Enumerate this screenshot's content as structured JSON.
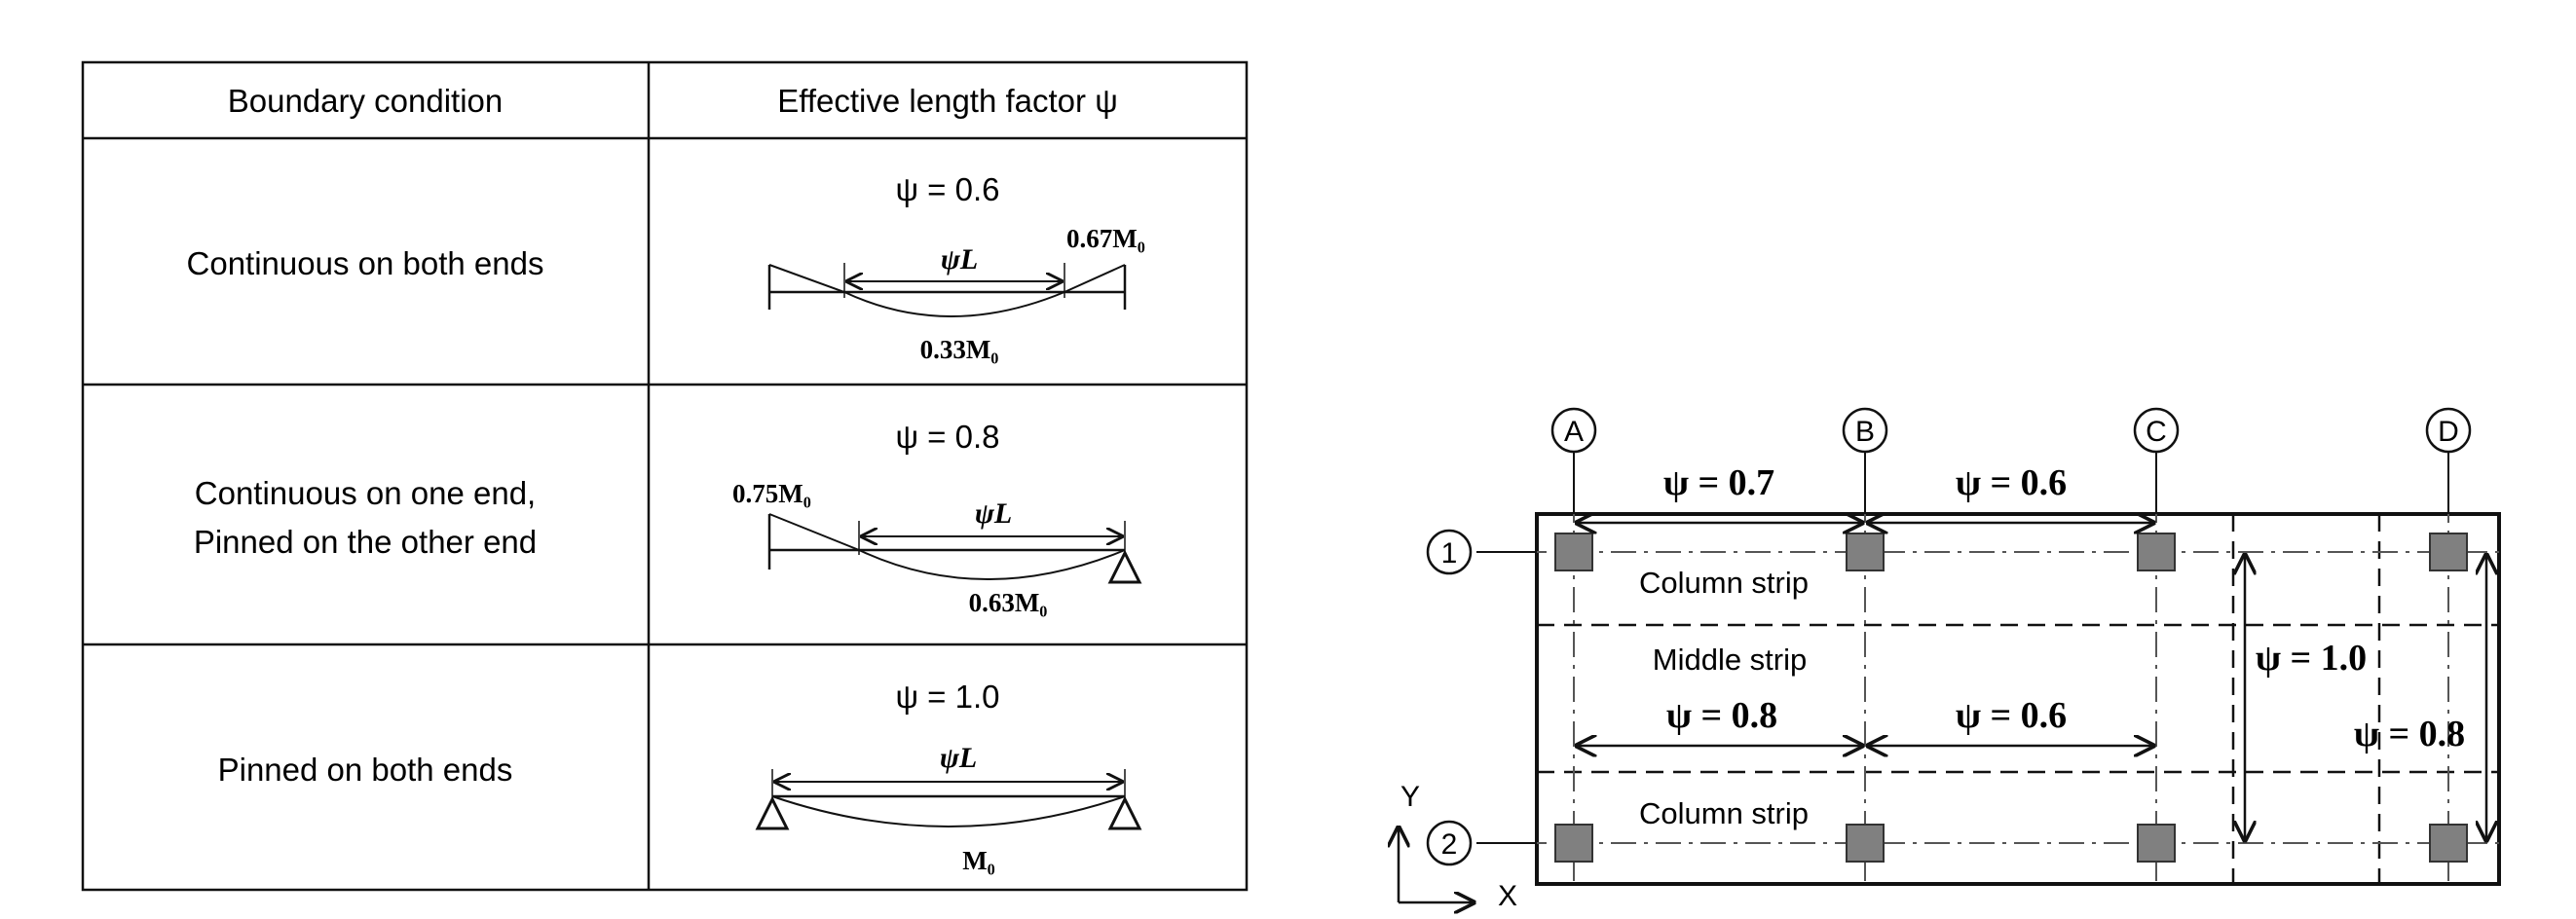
{
  "table": {
    "header_condition": "Boundary condition",
    "header_factor": "Effective length factor ψ",
    "rows": [
      {
        "condition_line1": "Continuous on both ends",
        "condition_line2": "",
        "psi_label": "ψ = 0.6",
        "span_label": "ψL",
        "moment_end": "0.67M₀",
        "moment_mid": "0.33M₀"
      },
      {
        "condition_line1": "Continuous on one end,",
        "condition_line2": "Pinned on the other end",
        "psi_label": "ψ = 0.8",
        "span_label": "ψL",
        "moment_end": "0.75M₀",
        "moment_mid": "0.63M₀"
      },
      {
        "condition_line1": "Pinned on both ends",
        "condition_line2": "",
        "psi_label": "ψ = 1.0",
        "span_label": "ψL",
        "moment_end": "",
        "moment_mid": "M₀"
      }
    ]
  },
  "plan": {
    "column_lines": [
      "A",
      "B",
      "C",
      "D"
    ],
    "row_lines": [
      "1",
      "2"
    ],
    "strips": {
      "column_strip_top": "Column strip",
      "middle_strip": "Middle strip",
      "column_strip_bottom": "Column strip"
    },
    "factors": {
      "ab_top": "ψ = 0.7",
      "bc_top": "ψ = 0.6",
      "ab_mid": "ψ = 0.8",
      "bc_mid": "ψ = 0.6",
      "vertical_inner": "ψ = 1.0",
      "vertical_outer": "ψ = 0.8"
    },
    "axes": {
      "y": "Y",
      "x": "X"
    }
  },
  "colors": {
    "line": "#111111",
    "column_fill": "#808080",
    "column_stroke": "#333333",
    "background": "#ffffff"
  }
}
